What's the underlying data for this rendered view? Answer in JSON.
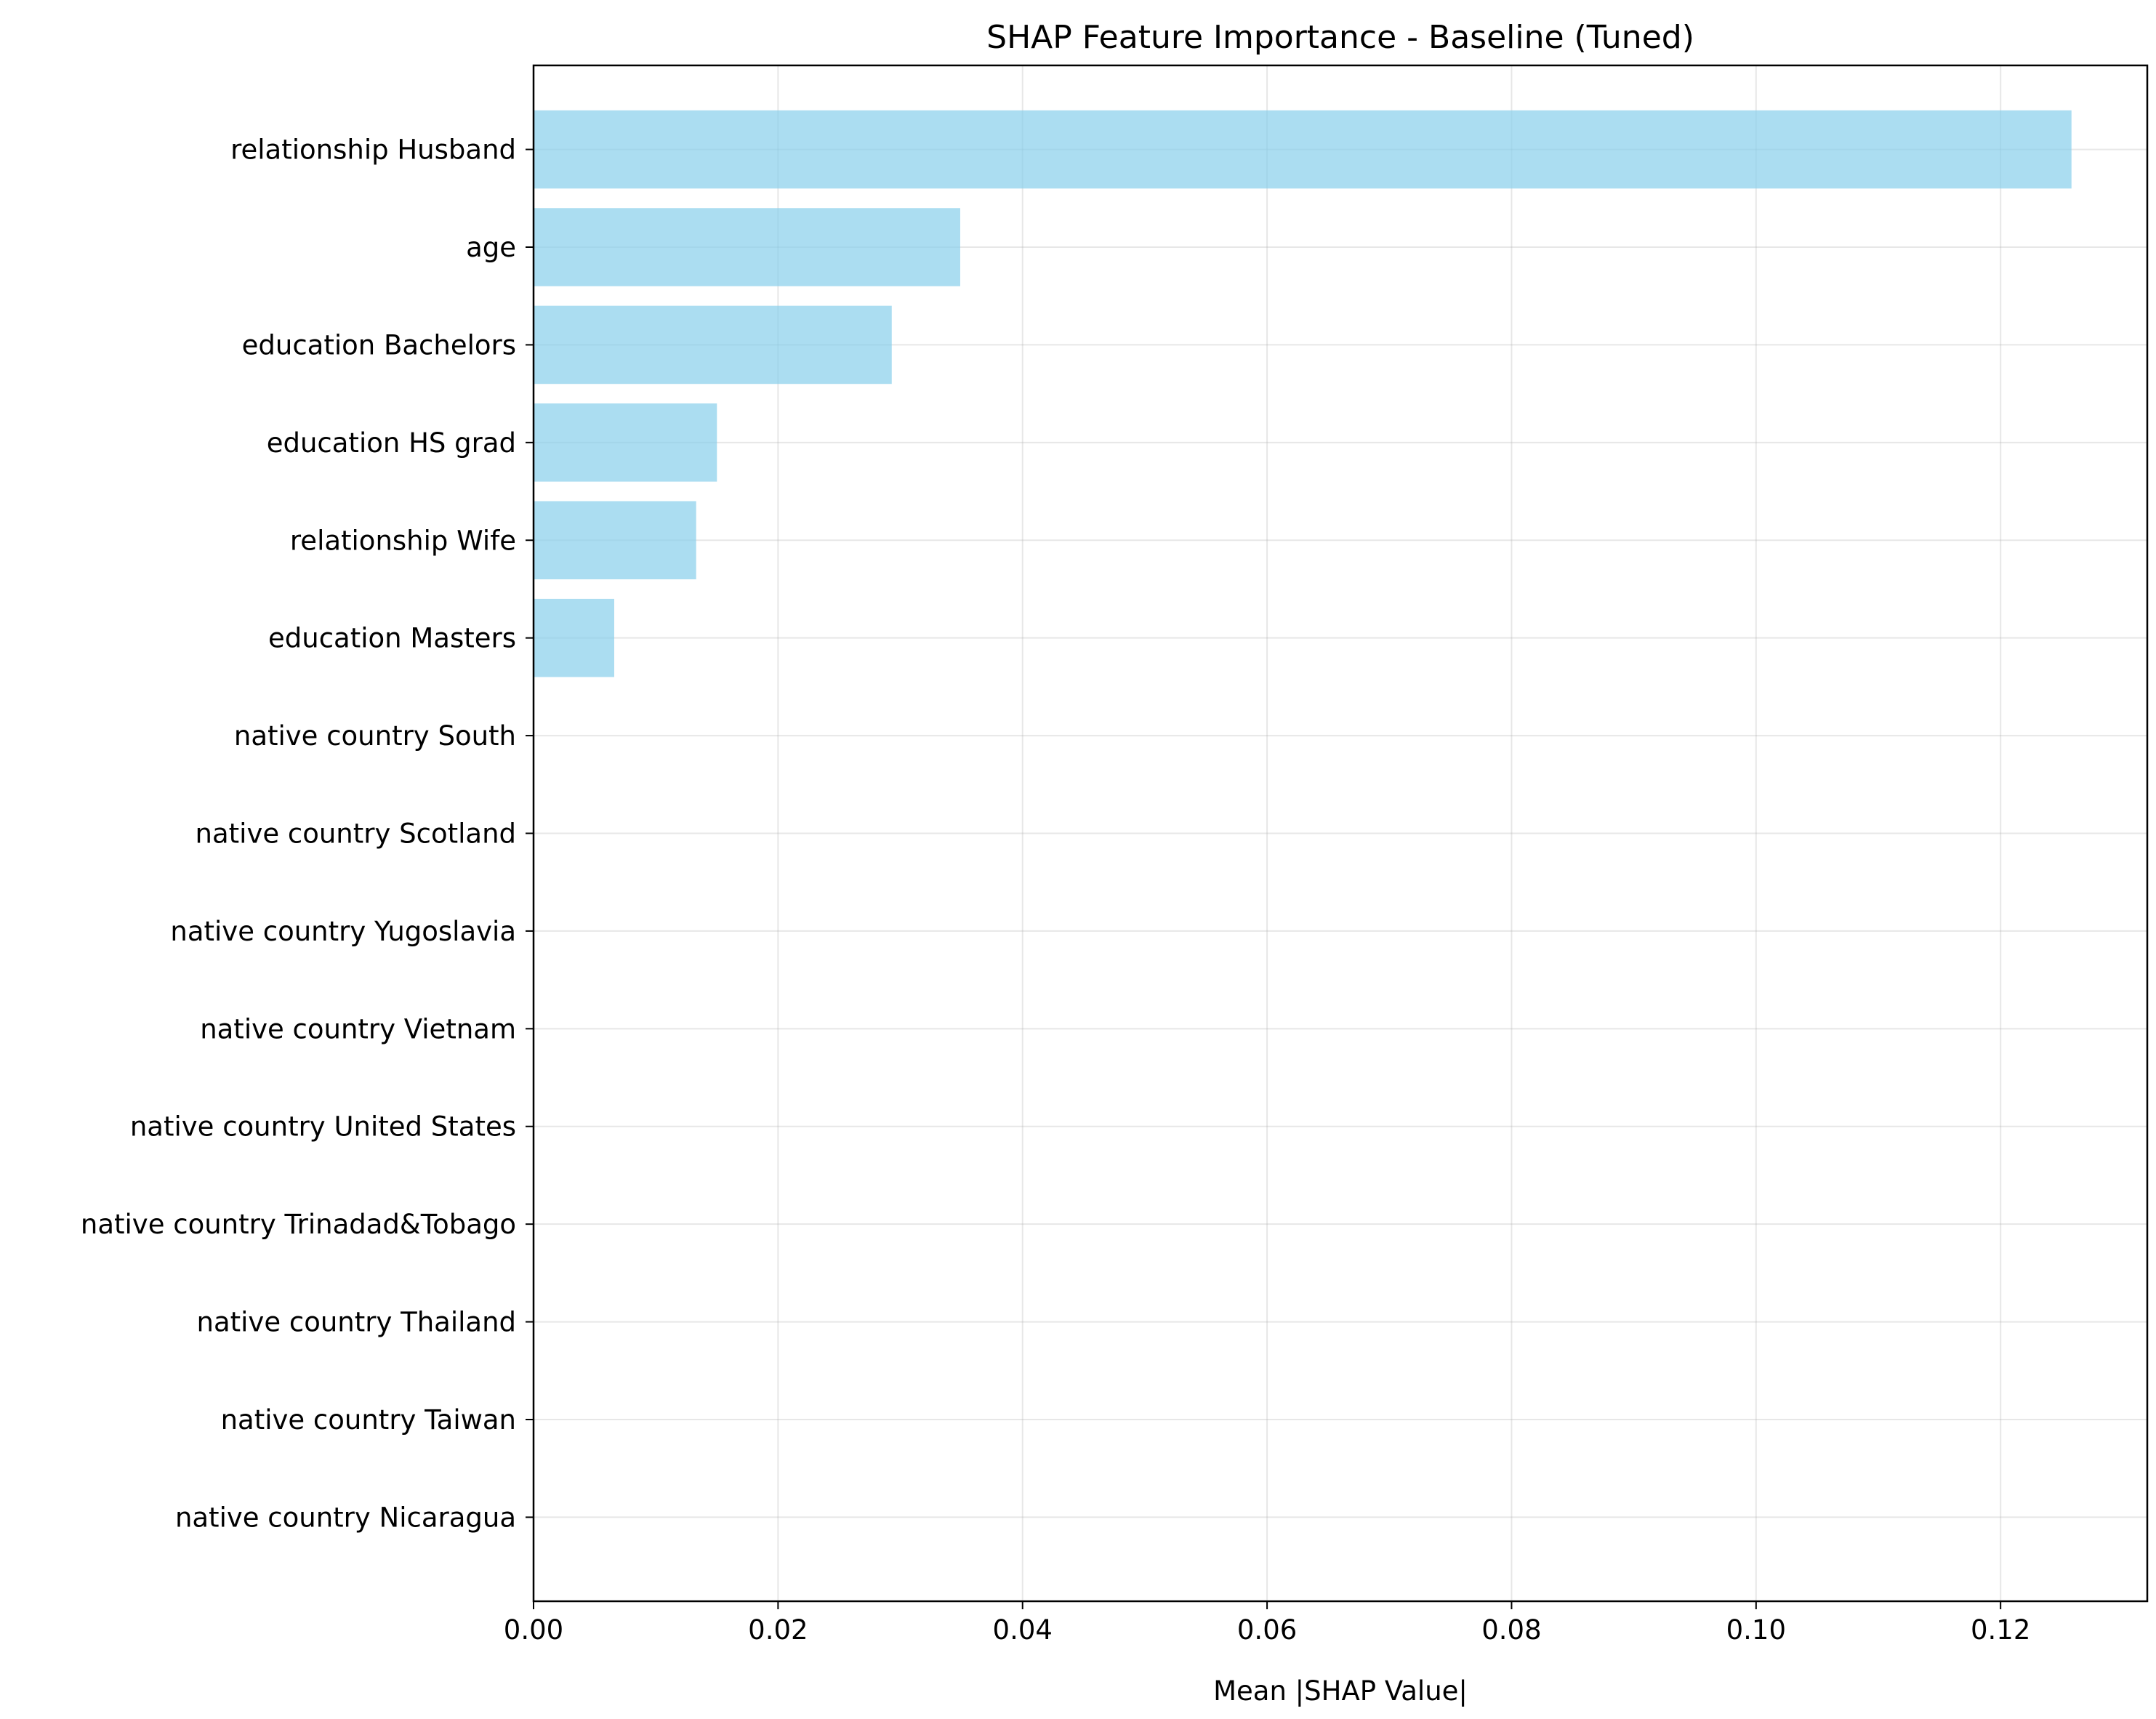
{
  "chart_data": {
    "type": "bar",
    "orientation": "horizontal",
    "title": "SHAP Feature Importance - Baseline (Tuned)",
    "xlabel": "Mean |SHAP Value|",
    "ylabel": "",
    "xlim": [
      0,
      0.132
    ],
    "x_ticks": [
      0.0,
      0.02,
      0.04,
      0.06,
      0.08,
      0.1,
      0.12
    ],
    "x_tick_labels": [
      "0.00",
      "0.02",
      "0.04",
      "0.06",
      "0.08",
      "0.10",
      "0.12"
    ],
    "grid": true,
    "bar_color": "#87ceeb",
    "categories": [
      "relationship Husband",
      "age",
      "education Bachelors",
      "education HS grad",
      "relationship Wife",
      "education Masters",
      "native country South",
      "native country Scotland",
      "native country Yugoslavia",
      "native country Vietnam",
      "native country United States",
      "native country Trinadad&Tobago",
      "native country Thailand",
      "native country Taiwan",
      "native country Nicaragua"
    ],
    "values": [
      0.1258,
      0.0349,
      0.0293,
      0.015,
      0.0133,
      0.0066,
      0,
      0,
      0,
      0,
      0,
      0,
      0,
      0,
      0
    ]
  }
}
